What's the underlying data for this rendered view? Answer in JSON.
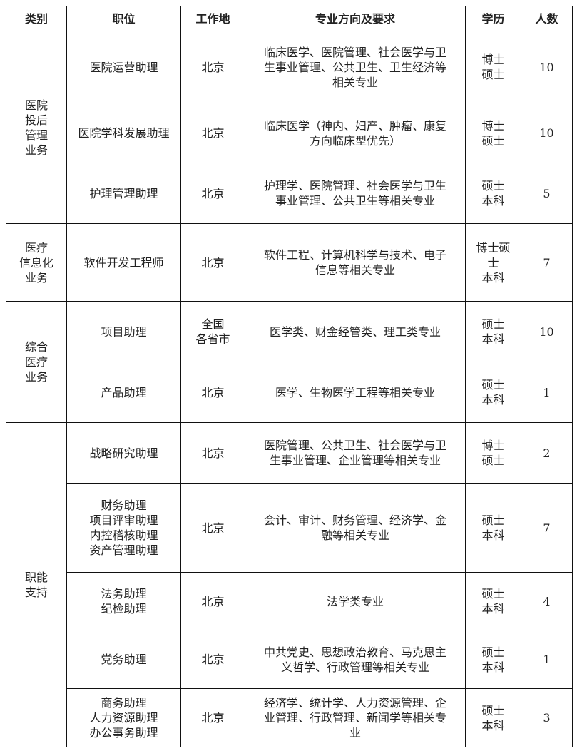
{
  "headers": [
    "类别",
    "职位",
    "工作地",
    "专业方向及要求",
    "学历",
    "人数"
  ],
  "categories": [
    {
      "name": "医院\n投后\n管理\n业务"
    },
    {
      "name": "医疗\n信息化\n业务"
    },
    {
      "name": "综合\n医疗\n业务"
    },
    {
      "name": "职能\n支持"
    }
  ],
  "rows": [
    {
      "position": "医院运营助理",
      "location": "北京",
      "major": "临床医学、医院管理、社会医学与卫\n生事业管理、公共卫生、卫生经济等\n相关专业",
      "education": "博士\n硕士",
      "count": "10"
    },
    {
      "position": "医院学科发展助理",
      "location": "北京",
      "major": "临床医学（神内、妇产、肿瘤、康复\n方向临床型优先）",
      "education": "博士\n硕士",
      "count": "10"
    },
    {
      "position": "护理管理助理",
      "location": "北京",
      "major": "护理学、医院管理、社会医学与卫生\n事业管理、公共卫生等相关专业",
      "education": "硕士\n本科",
      "count": "5"
    },
    {
      "position": "软件开发工程师",
      "location": "北京",
      "major": "软件工程、计算机科学与技术、电子\n信息等相关专业",
      "education": "博士硕\n士\n本科",
      "count": "7"
    },
    {
      "position": "项目助理",
      "location": "全国\n各省市",
      "major": "医学类、财金经管类、理工类专业",
      "education": "硕士\n本科",
      "count": "10"
    },
    {
      "position": "产品助理",
      "location": "北京",
      "major": "医学、生物医学工程等相关专业",
      "education": "硕士\n本科",
      "count": "1"
    },
    {
      "position": "战略研究助理",
      "location": "北京",
      "major": "医院管理、公共卫生、社会医学与卫\n生事业管理、企业管理等相关专业",
      "education": "博士\n硕士",
      "count": "2"
    },
    {
      "position": "财务助理\n项目评审助理\n内控稽核助理\n资产管理助理",
      "location": "北京",
      "major": "会计、审计、财务管理、经济学、金\n融等相关专业",
      "education": "硕士\n本科",
      "count": "7"
    },
    {
      "position": "法务助理\n纪检助理",
      "location": "北京",
      "major": "法学类专业",
      "education": "硕士\n本科",
      "count": "4"
    },
    {
      "position": "党务助理",
      "location": "北京",
      "major": "中共党史、思想政治教育、马克思主\n义哲学、行政管理等相关专业",
      "education": "硕士\n本科",
      "count": "1"
    },
    {
      "position": "商务助理\n人力资源助理\n办公事务助理",
      "location": "北京",
      "major": "经济学、统计学、人力资源管理、企\n业管理、行政管理、新闻学等相关专\n业",
      "education": "硕士\n本科",
      "count": "3"
    }
  ]
}
